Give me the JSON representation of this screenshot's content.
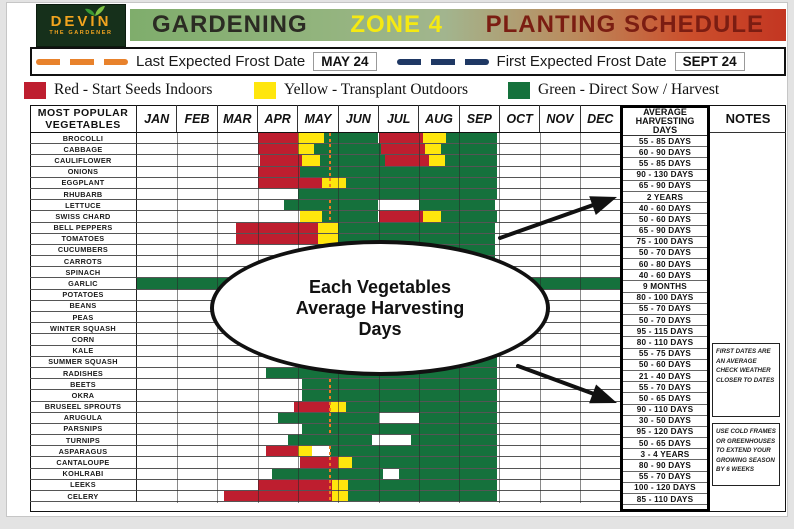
{
  "page": {
    "logo": {
      "title": "DEVIN",
      "subtitle": "THE GARDENER"
    },
    "title": {
      "part1": "GARDENING",
      "part2": "ZONE 4",
      "part3": "PLANTING SCHEDULE"
    },
    "frost_legend": {
      "last": {
        "label": "Last Expected Frost Date",
        "date": "MAY 24",
        "color": "#E8822C"
      },
      "first": {
        "label": "First Expected Frost Date",
        "date": "SEPT 24",
        "color": "#1F3864"
      }
    },
    "color_legend": [
      {
        "label": "Red - Start Seeds Indoors",
        "color": "#BE1E2F"
      },
      {
        "label": "Yellow - Transplant Outdoors",
        "color": "#FFE60D"
      },
      {
        "label": "Green - Direct Sow / Harvest",
        "color": "#15713C"
      }
    ],
    "callout": {
      "line1": "Each Vegetables",
      "line2": "Average Harvesting",
      "line3": "Days"
    },
    "notes": [
      "FIRST DATES ARE AN AVERAGE CHECK WEATHER CLOSER TO DATES",
      "USE COLD FRAMES OR GREENHOUSES TO EXTEND YOUR GROWING SEASON BY 6 WEEKS"
    ]
  },
  "chart_data": {
    "type": "table",
    "subtype": "gantt-planting-schedule",
    "title": "GARDENING ZONE 4 PLANTING SCHEDULE",
    "left_header": [
      "MOST POPULAR",
      "VEGETABLES"
    ],
    "months": [
      "JAN",
      "FEB",
      "MAR",
      "APR",
      "MAY",
      "JUN",
      "JUL",
      "AUG",
      "SEP",
      "OCT",
      "NOV",
      "DEC"
    ],
    "avg_header": [
      "AVERAGE",
      "HARVESTING",
      "DAYS"
    ],
    "notes_header": "NOTES",
    "legend": {
      "R": "Start Seeds Indoors",
      "Y": "Transplant Outdoors",
      "G": "Direct Sow / Harvest"
    },
    "segment_colors": {
      "R": "#BE1E2F",
      "Y": "#FFE60D",
      "G": "#15713C"
    },
    "frost_marker_month": 4.77,
    "frost_marker_color": "#F07C1F",
    "annotations": {
      "callout_text": "Each Vegetables Average Harvesting Days",
      "arrow_count": 2
    },
    "rows": [
      {
        "name": "BROCOLLI",
        "days": "55 - 85 DAYS",
        "frost_marker": true,
        "segments": [
          [
            "R",
            3,
            4
          ],
          [
            "Y",
            4,
            4.65
          ],
          [
            "G",
            4.65,
            6
          ],
          [
            "R",
            6,
            7.1
          ],
          [
            "Y",
            7.1,
            7.68
          ],
          [
            "G",
            7.68,
            8.95
          ]
        ]
      },
      {
        "name": "CABBAGE",
        "days": "60 - 90 DAYS",
        "frost_marker": true,
        "segments": [
          [
            "R",
            3,
            4
          ],
          [
            "Y",
            4,
            4.4
          ],
          [
            "G",
            4.4,
            6.05
          ],
          [
            "R",
            6.05,
            7.15
          ],
          [
            "Y",
            7.15,
            7.55
          ],
          [
            "G",
            7.55,
            8.95
          ]
        ]
      },
      {
        "name": "CAULIFLOWER",
        "days": "55 - 85 DAYS",
        "frost_marker": true,
        "segments": [
          [
            "R",
            3.05,
            4.1
          ],
          [
            "Y",
            4.1,
            4.55
          ],
          [
            "G",
            4.55,
            6.15
          ],
          [
            "R",
            6.15,
            7.25
          ],
          [
            "Y",
            7.25,
            7.65
          ],
          [
            "G",
            7.65,
            8.95
          ]
        ]
      },
      {
        "name": "ONIONS",
        "days": "90 - 130 DAYS",
        "frost_marker": true,
        "segments": [
          [
            "R",
            3,
            4.05
          ],
          [
            "G",
            4.05,
            8.95
          ]
        ]
      },
      {
        "name": "EGGPLANT",
        "days": "65 - 90 DAYS",
        "frost_marker": true,
        "segments": [
          [
            "R",
            3,
            4.6
          ],
          [
            "Y",
            4.6,
            5.2
          ],
          [
            "G",
            5.2,
            8.95
          ]
        ]
      },
      {
        "name": "RHUBARB",
        "days": "2 YEARS",
        "frost_marker": false,
        "segments": [
          [
            "G",
            4,
            8.95
          ]
        ]
      },
      {
        "name": "LETTUCE",
        "days": "40 - 60 DAYS",
        "frost_marker": true,
        "segments": [
          [
            "G",
            3.65,
            6
          ],
          [
            "G",
            7,
            8.9
          ]
        ]
      },
      {
        "name": "SWISS CHARD",
        "days": "50 - 60 DAYS",
        "frost_marker": true,
        "segments": [
          [
            "Y",
            4.05,
            4.6
          ],
          [
            "G",
            4.6,
            6
          ],
          [
            "R",
            6,
            7.1
          ],
          [
            "Y",
            7.1,
            7.55
          ],
          [
            "G",
            7.55,
            8.95
          ]
        ]
      },
      {
        "name": "BELL PEPPERS",
        "days": "65 - 90 DAYS",
        "frost_marker": false,
        "segments": [
          [
            "R",
            2.45,
            4.5
          ],
          [
            "Y",
            4.5,
            5
          ],
          [
            "G",
            5,
            8.9
          ]
        ]
      },
      {
        "name": "TOMATOES",
        "days": "75 - 100 DAYS",
        "frost_marker": false,
        "segments": [
          [
            "R",
            2.45,
            4.5
          ],
          [
            "Y",
            4.5,
            5
          ],
          [
            "G",
            5,
            8.9
          ]
        ]
      },
      {
        "name": "CUCUMBERS",
        "days": "50 - 70 DAYS",
        "frost_marker": false,
        "segments": [
          [
            "G",
            4.5,
            8.9
          ]
        ]
      },
      {
        "name": "CARROTS",
        "days": "60 - 80 DAYS",
        "frost_marker": false,
        "segments": [
          [
            "G",
            4.1,
            8.9
          ]
        ]
      },
      {
        "name": "SPINACH",
        "days": "40 - 60 DAYS",
        "frost_marker": false,
        "segments": [
          [
            "G",
            3.5,
            8.9
          ]
        ]
      },
      {
        "name": "GARLIC",
        "days": "9 MONTHS",
        "frost_marker": false,
        "segments": [
          [
            "G",
            0,
            7
          ],
          [
            "G",
            9,
            12
          ]
        ]
      },
      {
        "name": "POTATOES",
        "days": "80 - 100 DAYS",
        "frost_marker": false,
        "segments": [
          [
            "G",
            4.2,
            7.6
          ]
        ]
      },
      {
        "name": "BEANS",
        "days": "55 - 70 DAYS",
        "frost_marker": false,
        "segments": [
          [
            "G",
            5,
            7.6
          ]
        ]
      },
      {
        "name": "PEAS",
        "days": "50 - 70 DAYS",
        "frost_marker": false,
        "segments": [
          [
            "G",
            3.2,
            7
          ]
        ]
      },
      {
        "name": "WINTER SQUASH",
        "days": "95 - 115 DAYS",
        "frost_marker": false,
        "segments": [
          [
            "G",
            5,
            8.6
          ]
        ]
      },
      {
        "name": "CORN",
        "days": "80 - 110 DAYS",
        "frost_marker": false,
        "segments": [
          [
            "G",
            5,
            8.6
          ]
        ]
      },
      {
        "name": "KALE",
        "days": "55 - 75 DAYS",
        "frost_marker": false,
        "segments": [
          [
            "G",
            4.2,
            8.95
          ]
        ]
      },
      {
        "name": "SUMMER SQUASH",
        "days": "50 - 60 DAYS",
        "frost_marker": false,
        "segments": [
          [
            "G",
            4.5,
            8.95
          ]
        ]
      },
      {
        "name": "RADISHES",
        "days": "21 - 40 DAYS",
        "frost_marker": false,
        "segments": [
          [
            "G",
            3.2,
            8.95
          ]
        ]
      },
      {
        "name": "BEETS",
        "days": "55 - 70 DAYS",
        "frost_marker": true,
        "segments": [
          [
            "G",
            4.1,
            8.95
          ]
        ]
      },
      {
        "name": "OKRA",
        "days": "50 - 65 DAYS",
        "frost_marker": true,
        "segments": [
          [
            "G",
            4.1,
            8.95
          ]
        ]
      },
      {
        "name": "BRUSEEL SPROUTS",
        "days": "90 - 110 DAYS",
        "frost_marker": true,
        "segments": [
          [
            "R",
            3.9,
            4.8
          ],
          [
            "Y",
            4.8,
            5.2
          ],
          [
            "G",
            5.2,
            8.95
          ]
        ]
      },
      {
        "name": "ARUGULA",
        "days": "30 - 50 DAYS",
        "frost_marker": true,
        "segments": [
          [
            "G",
            3.5,
            6
          ],
          [
            "G",
            7,
            8.95
          ]
        ]
      },
      {
        "name": "PARSNIPS",
        "days": "95 - 120 DAYS",
        "frost_marker": true,
        "segments": [
          [
            "G",
            4.1,
            8.95
          ]
        ]
      },
      {
        "name": "TURNIPS",
        "days": "50 - 65 DAYS",
        "frost_marker": false,
        "segments": [
          [
            "G",
            3.75,
            5.85
          ],
          [
            "G",
            6.8,
            8.95
          ]
        ]
      },
      {
        "name": "ASPARAGUS",
        "days": "3 - 4 YEARS",
        "frost_marker": true,
        "segments": [
          [
            "R",
            3.2,
            4
          ],
          [
            "Y",
            4,
            4.35
          ],
          [
            "G",
            4.8,
            8.95
          ]
        ]
      },
      {
        "name": "CANTALOUPE",
        "days": "80 - 90 DAYS",
        "frost_marker": true,
        "segments": [
          [
            "R",
            4.05,
            5
          ],
          [
            "Y",
            5,
            5.35
          ],
          [
            "G",
            5.35,
            8.95
          ]
        ]
      },
      {
        "name": "KOHLRABI",
        "days": "55 - 70 DAYS",
        "frost_marker": true,
        "segments": [
          [
            "G",
            3.35,
            6.1
          ],
          [
            "G",
            6.5,
            8.95
          ]
        ]
      },
      {
        "name": "LEEKS",
        "days": "100 - 120 DAYS",
        "frost_marker": true,
        "segments": [
          [
            "R",
            3,
            4.85
          ],
          [
            "Y",
            4.85,
            5.25
          ],
          [
            "G",
            5.25,
            8.95
          ]
        ]
      },
      {
        "name": "CELERY",
        "days": "85 - 110 DAYS",
        "frost_marker": true,
        "segments": [
          [
            "R",
            2.15,
            4.85
          ],
          [
            "Y",
            4.85,
            5.25
          ],
          [
            "G",
            5.25,
            8.95
          ]
        ]
      }
    ]
  }
}
